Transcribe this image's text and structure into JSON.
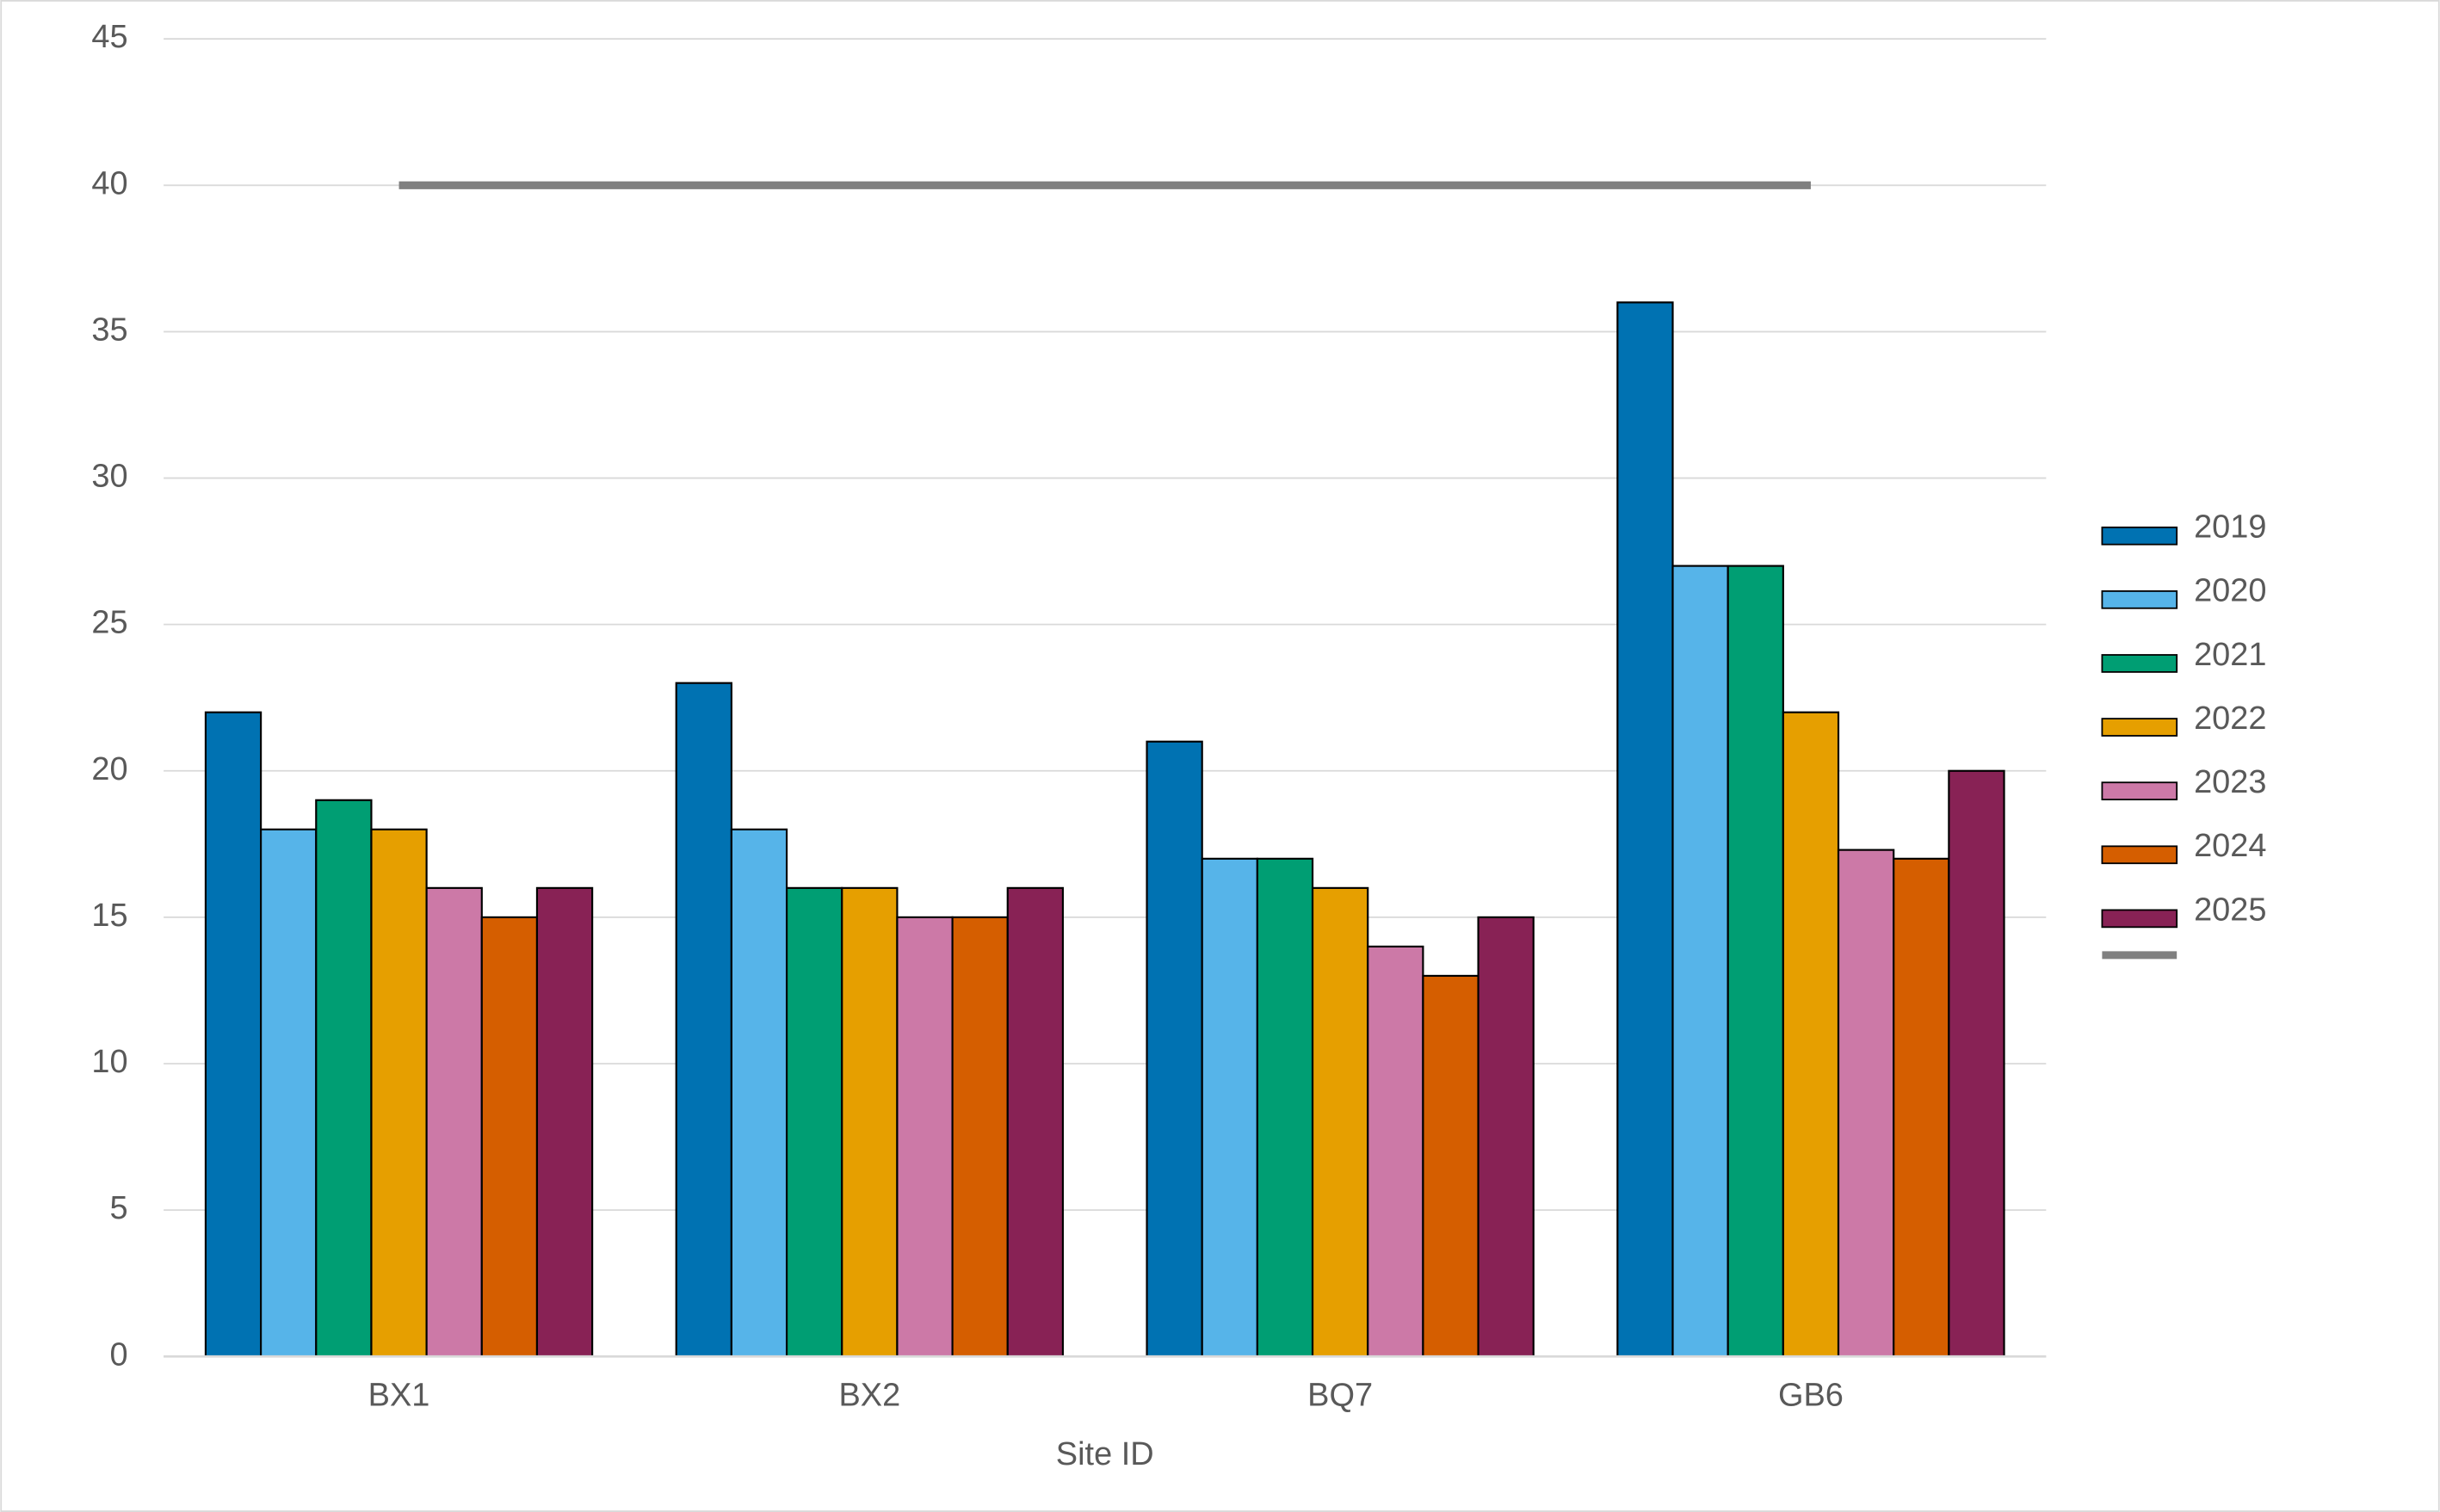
{
  "chart_data": {
    "type": "bar",
    "xlabel": "Site ID",
    "categories": [
      "BX1",
      "BX2",
      "BQ7",
      "GB6"
    ],
    "series": [
      {
        "name": "2019",
        "color": "#0072b2",
        "values": [
          22,
          23,
          21,
          36
        ]
      },
      {
        "name": "2020",
        "color": "#56b4e9",
        "values": [
          18,
          18,
          17,
          27
        ]
      },
      {
        "name": "2021",
        "color": "#009e73",
        "values": [
          19,
          16,
          17,
          27
        ]
      },
      {
        "name": "2022",
        "color": "#e69f00",
        "values": [
          18,
          16,
          16,
          22
        ]
      },
      {
        "name": "2023",
        "color": "#cc79a7",
        "values": [
          16,
          15,
          14,
          17.3
        ]
      },
      {
        "name": "2024",
        "color": "#d55e00",
        "values": [
          15,
          15,
          13,
          17
        ]
      },
      {
        "name": "2025",
        "color": "#882255",
        "values": [
          16,
          16,
          15,
          20
        ]
      },
      {
        "type": "line",
        "color": "#808080",
        "values": [
          40,
          40,
          40,
          40
        ]
      }
    ],
    "ylim": [
      0,
      45
    ],
    "yticks": [
      0,
      5,
      10,
      15,
      20,
      25,
      30,
      35,
      40,
      45
    ],
    "grid": true,
    "legend": "right"
  }
}
